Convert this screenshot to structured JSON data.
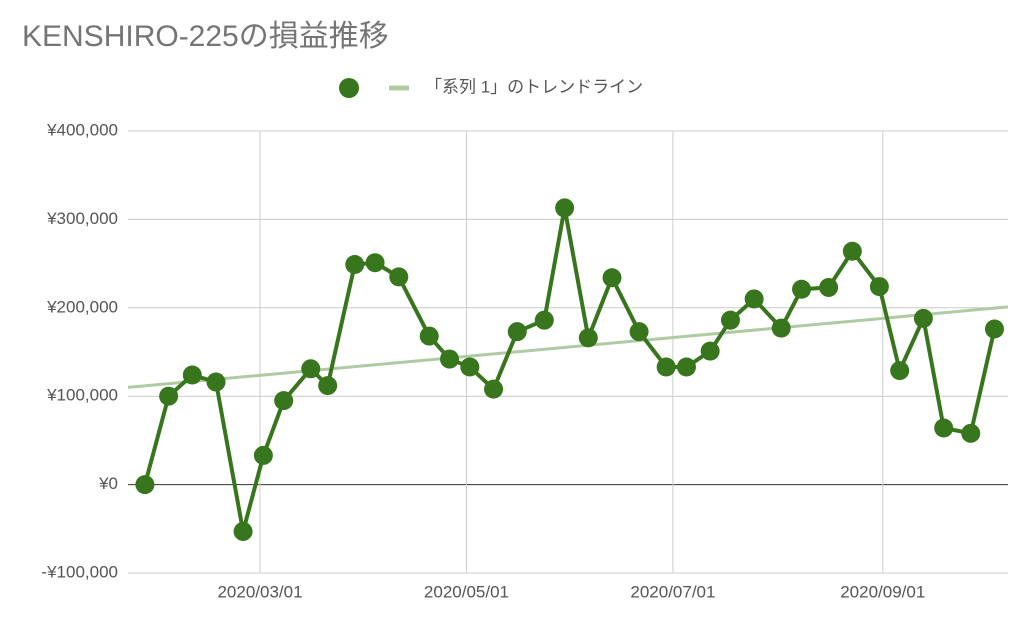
{
  "chart_data": {
    "type": "line",
    "title": "KENSHIRO-225の損益推移",
    "x": [
      "2020/01/27",
      "2020/02/03",
      "2020/02/10",
      "2020/02/17",
      "2020/02/25",
      "2020/03/02",
      "2020/03/08",
      "2020/03/16",
      "2020/03/21",
      "2020/03/29",
      "2020/04/04",
      "2020/04/11",
      "2020/04/20",
      "2020/04/26",
      "2020/05/02",
      "2020/05/09",
      "2020/05/16",
      "2020/05/24",
      "2020/05/30",
      "2020/06/06",
      "2020/06/13",
      "2020/06/21",
      "2020/06/29",
      "2020/07/05",
      "2020/07/12",
      "2020/07/18",
      "2020/07/25",
      "2020/08/02",
      "2020/08/08",
      "2020/08/16",
      "2020/08/23",
      "2020/08/31",
      "2020/09/06",
      "2020/09/13",
      "2020/09/19",
      "2020/09/27",
      "2020/10/04"
    ],
    "series": [
      {
        "color": "#38761d",
        "values": [
          0,
          100000,
          124000,
          116000,
          -53000,
          33000,
          95000,
          131000,
          112000,
          249000,
          251000,
          235000,
          168000,
          142000,
          133000,
          108000,
          173000,
          186000,
          313000,
          166000,
          234000,
          173000,
          133000,
          133000,
          151000,
          186000,
          210000,
          177000,
          221000,
          223000,
          264000,
          224000,
          129000,
          188000,
          64000,
          58000,
          176000
        ]
      }
    ],
    "trendline": {
      "name": "「系列 1」のトレンドライン",
      "color": "#afcba4",
      "values": [
        110000,
        201000
      ]
    },
    "xlim": [
      "2020/01/22",
      "2020/10/08"
    ],
    "xticks": [
      "2020/03/01",
      "2020/05/01",
      "2020/07/01",
      "2020/09/01"
    ],
    "ylim": [
      -100000,
      400000
    ],
    "yticks": [
      {
        "value": -100000,
        "label": "-¥100,000"
      },
      {
        "value": 0,
        "label": "¥0"
      },
      {
        "value": 100000,
        "label": "¥100,000"
      },
      {
        "value": 200000,
        "label": "¥200,000"
      },
      {
        "value": 300000,
        "label": "¥300,000"
      },
      {
        "value": 400000,
        "label": "¥400,000"
      }
    ],
    "grid": true
  }
}
